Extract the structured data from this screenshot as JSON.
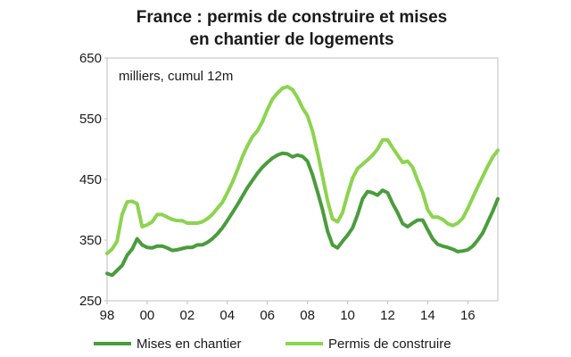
{
  "chart_data": {
    "type": "line",
    "title_line1": "France : permis de construire et mises",
    "title_line2": "en chantier de logements",
    "unit_label": "milliers, cumul 12m",
    "ylim": [
      250,
      650
    ],
    "y_ticks": [
      250,
      350,
      450,
      550,
      650
    ],
    "xlim": [
      1998,
      2017.5
    ],
    "x_ticks": [
      {
        "value": 1998,
        "label": "98"
      },
      {
        "value": 2000,
        "label": "00"
      },
      {
        "value": 2002,
        "label": "02"
      },
      {
        "value": 2004,
        "label": "04"
      },
      {
        "value": 2006,
        "label": "06"
      },
      {
        "value": 2008,
        "label": "08"
      },
      {
        "value": 2010,
        "label": "10"
      },
      {
        "value": 2012,
        "label": "12"
      },
      {
        "value": 2014,
        "label": "14"
      },
      {
        "value": 2016,
        "label": "16"
      }
    ],
    "grid": false,
    "legend_position": "bottom",
    "series": [
      {
        "name": "Mises en chantier",
        "color": "#4a9c3c",
        "x": [
          1998.0,
          1998.25,
          1998.5,
          1998.75,
          1999.0,
          1999.25,
          1999.5,
          1999.75,
          2000.0,
          2000.25,
          2000.5,
          2000.75,
          2001.0,
          2001.25,
          2001.5,
          2001.75,
          2002.0,
          2002.25,
          2002.5,
          2002.75,
          2003.0,
          2003.25,
          2003.5,
          2003.75,
          2004.0,
          2004.25,
          2004.5,
          2004.75,
          2005.0,
          2005.25,
          2005.5,
          2005.75,
          2006.0,
          2006.25,
          2006.5,
          2006.75,
          2007.0,
          2007.25,
          2007.5,
          2007.75,
          2008.0,
          2008.25,
          2008.5,
          2008.75,
          2009.0,
          2009.25,
          2009.5,
          2009.75,
          2010.0,
          2010.25,
          2010.5,
          2010.75,
          2011.0,
          2011.25,
          2011.5,
          2011.75,
          2012.0,
          2012.25,
          2012.5,
          2012.75,
          2013.0,
          2013.25,
          2013.5,
          2013.75,
          2014.0,
          2014.25,
          2014.5,
          2014.75,
          2015.0,
          2015.25,
          2015.5,
          2015.75,
          2016.0,
          2016.25,
          2016.5,
          2016.75,
          2017.0,
          2017.25,
          2017.5
        ],
        "values": [
          295,
          292,
          300,
          308,
          325,
          335,
          352,
          342,
          338,
          337,
          340,
          340,
          337,
          333,
          334,
          336,
          338,
          338,
          342,
          342,
          346,
          352,
          360,
          370,
          382,
          395,
          408,
          422,
          436,
          448,
          460,
          470,
          478,
          485,
          490,
          493,
          492,
          487,
          490,
          488,
          480,
          458,
          430,
          400,
          365,
          342,
          337,
          348,
          358,
          370,
          392,
          418,
          430,
          428,
          424,
          432,
          428,
          410,
          395,
          377,
          372,
          378,
          383,
          383,
          367,
          352,
          343,
          340,
          338,
          335,
          331,
          332,
          334,
          340,
          350,
          362,
          380,
          398,
          418
        ]
      },
      {
        "name": "Permis de construire",
        "color": "#8cd44e",
        "x": [
          1998.0,
          1998.25,
          1998.5,
          1998.75,
          1999.0,
          1999.25,
          1999.5,
          1999.75,
          2000.0,
          2000.25,
          2000.5,
          2000.75,
          2001.0,
          2001.25,
          2001.5,
          2001.75,
          2002.0,
          2002.25,
          2002.5,
          2002.75,
          2003.0,
          2003.25,
          2003.5,
          2003.75,
          2004.0,
          2004.25,
          2004.5,
          2004.75,
          2005.0,
          2005.25,
          2005.5,
          2005.75,
          2006.0,
          2006.25,
          2006.5,
          2006.75,
          2007.0,
          2007.25,
          2007.5,
          2007.75,
          2008.0,
          2008.25,
          2008.5,
          2008.75,
          2009.0,
          2009.25,
          2009.5,
          2009.75,
          2010.0,
          2010.25,
          2010.5,
          2010.75,
          2011.0,
          2011.25,
          2011.5,
          2011.75,
          2012.0,
          2012.25,
          2012.5,
          2012.75,
          2013.0,
          2013.25,
          2013.5,
          2013.75,
          2014.0,
          2014.25,
          2014.5,
          2014.75,
          2015.0,
          2015.25,
          2015.5,
          2015.75,
          2016.0,
          2016.25,
          2016.5,
          2016.75,
          2017.0,
          2017.25,
          2017.5
        ],
        "values": [
          328,
          335,
          348,
          392,
          413,
          414,
          410,
          372,
          375,
          380,
          392,
          392,
          388,
          384,
          382,
          382,
          378,
          378,
          378,
          380,
          385,
          392,
          402,
          412,
          428,
          445,
          465,
          487,
          505,
          520,
          530,
          545,
          565,
          582,
          592,
          600,
          603,
          598,
          585,
          568,
          555,
          530,
          495,
          455,
          415,
          385,
          380,
          395,
          425,
          452,
          468,
          475,
          482,
          490,
          500,
          515,
          515,
          502,
          490,
          478,
          480,
          470,
          448,
          428,
          400,
          388,
          388,
          384,
          377,
          374,
          378,
          386,
          402,
          420,
          438,
          455,
          472,
          487,
          498
        ]
      }
    ]
  }
}
